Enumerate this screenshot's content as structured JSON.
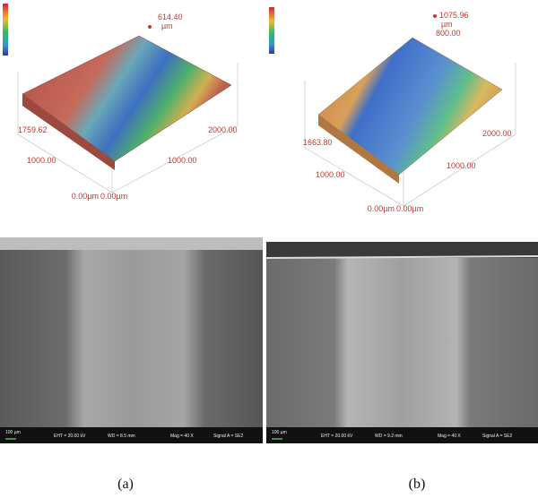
{
  "panels": [
    {
      "profile": {
        "max_label": "614.40",
        "max_unit": "µm",
        "z_label": "1759.62",
        "y_far": "2000.00",
        "y_mid": "1000.00",
        "x_mid": "1000.00",
        "x_origin": "0.00µm",
        "y_origin": "0.00µm"
      },
      "sem": {
        "scale": "100 µm",
        "eht": "EHT = 20.00 kV",
        "wd": "WD = 8.5 mm",
        "mag": "Mag = 40 X",
        "signal": "Signal A = SE2"
      },
      "caption": "(a)"
    },
    {
      "profile": {
        "max_label": "1075.96",
        "max_unit": "µm",
        "extra_label": "800.00",
        "z_label": "1663.80",
        "y_far": "2000.00",
        "y_mid": "1000.00",
        "x_mid": "1000.00",
        "x_origin": "0.00µm",
        "y_origin": "0.00µm"
      },
      "sem": {
        "scale": "100 µm",
        "eht": "EHT = 20.00 kV",
        "wd": "WD = 9.2 mm",
        "mag": "Mag = 40 X",
        "signal": "Signal A = SE2"
      },
      "caption": "(b)"
    }
  ]
}
